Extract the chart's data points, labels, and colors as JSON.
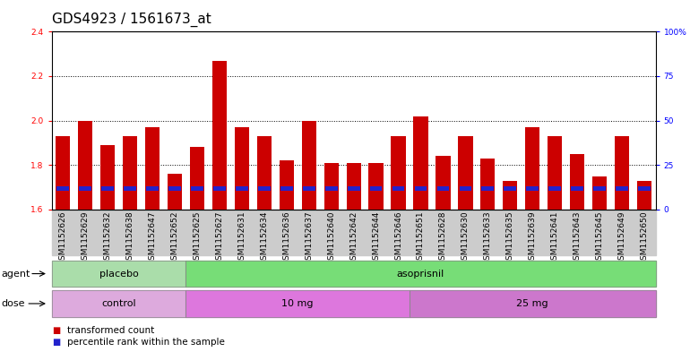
{
  "title": "GDS4923 / 1561673_at",
  "samples": [
    "GSM1152626",
    "GSM1152629",
    "GSM1152632",
    "GSM1152638",
    "GSM1152647",
    "GSM1152652",
    "GSM1152625",
    "GSM1152627",
    "GSM1152631",
    "GSM1152634",
    "GSM1152636",
    "GSM1152637",
    "GSM1152640",
    "GSM1152642",
    "GSM1152644",
    "GSM1152646",
    "GSM1152651",
    "GSM1152628",
    "GSM1152630",
    "GSM1152633",
    "GSM1152635",
    "GSM1152639",
    "GSM1152641",
    "GSM1152643",
    "GSM1152645",
    "GSM1152649",
    "GSM1152650"
  ],
  "transformed_count": [
    1.93,
    2.0,
    1.89,
    1.93,
    1.97,
    1.76,
    1.88,
    2.27,
    1.97,
    1.93,
    1.82,
    2.0,
    1.81,
    1.81,
    1.81,
    1.93,
    2.02,
    1.84,
    1.93,
    1.83,
    1.73,
    1.97,
    1.93,
    1.85,
    1.75,
    1.93,
    1.73
  ],
  "percentile_rank": [
    10,
    15,
    12,
    14,
    13,
    15,
    14,
    16,
    22,
    16,
    16,
    14,
    16,
    16,
    11,
    16,
    20,
    16,
    20,
    17,
    12,
    16,
    16,
    14,
    10,
    10,
    8
  ],
  "ymin": 1.6,
  "ymax": 2.4,
  "yticks": [
    1.6,
    1.8,
    2.0,
    2.2,
    2.4
  ],
  "right_yticks": [
    0,
    25,
    50,
    75,
    100
  ],
  "right_ylabels": [
    "0",
    "25",
    "50",
    "75",
    "100%"
  ],
  "bar_color": "#cc0000",
  "blue_color": "#2222cc",
  "plot_bg": "#e8e8e8",
  "agent_groups": [
    {
      "label": "placebo",
      "start": 0,
      "end": 6,
      "color": "#aaddaa"
    },
    {
      "label": "asoprisnil",
      "start": 6,
      "end": 27,
      "color": "#77dd77"
    }
  ],
  "dose_groups": [
    {
      "label": "control",
      "start": 0,
      "end": 6,
      "color": "#ddaadd"
    },
    {
      "label": "10 mg",
      "start": 6,
      "end": 16,
      "color": "#dd77dd"
    },
    {
      "label": "25 mg",
      "start": 16,
      "end": 27,
      "color": "#cc77cc"
    }
  ],
  "legend_items": [
    {
      "label": "transformed count",
      "color": "#cc0000"
    },
    {
      "label": "percentile rank within the sample",
      "color": "#2222cc"
    }
  ],
  "title_fontsize": 11,
  "tick_fontsize": 6.5,
  "row_label_fontsize": 8,
  "group_label_fontsize": 8,
  "legend_fontsize": 7.5
}
